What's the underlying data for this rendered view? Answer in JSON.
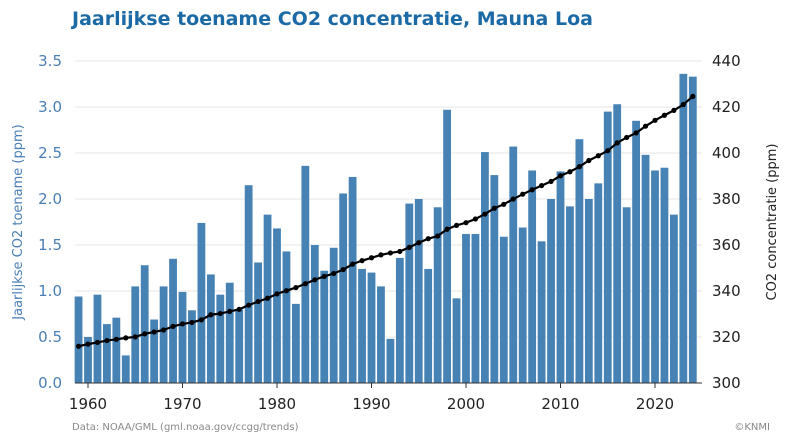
{
  "chart_data": {
    "type": "bar",
    "title": "Jaarlijkse toename CO2 concentratie, Mauna Loa",
    "xlabel": "",
    "ylabel": "Jaarlijkse CO2 toename (ppm)",
    "y2label": "CO2 concentratie (ppm)",
    "ylim": [
      0,
      3.5
    ],
    "y2lim": [
      300,
      440
    ],
    "yticks": [
      "0.0",
      "0.5",
      "1.0",
      "1.5",
      "2.0",
      "2.5",
      "3.0",
      "3.5"
    ],
    "y2ticks": [
      "300",
      "320",
      "340",
      "360",
      "380",
      "400",
      "420",
      "440"
    ],
    "xticks": [
      "1960",
      "1970",
      "1980",
      "1990",
      "2000",
      "2010",
      "2020"
    ],
    "grid": true,
    "x": [
      1959,
      1960,
      1961,
      1962,
      1963,
      1964,
      1965,
      1966,
      1967,
      1968,
      1969,
      1970,
      1971,
      1972,
      1973,
      1974,
      1975,
      1976,
      1977,
      1978,
      1979,
      1980,
      1981,
      1982,
      1983,
      1984,
      1985,
      1986,
      1987,
      1988,
      1989,
      1990,
      1991,
      1992,
      1993,
      1994,
      1995,
      1996,
      1997,
      1998,
      1999,
      2000,
      2001,
      2002,
      2003,
      2004,
      2005,
      2006,
      2007,
      2008,
      2009,
      2010,
      2011,
      2012,
      2013,
      2014,
      2015,
      2016,
      2017,
      2018,
      2019,
      2020,
      2021,
      2022,
      2023,
      2024
    ],
    "series": [
      {
        "name": "Jaarlijkse toename",
        "type": "bar",
        "axis": "left",
        "color": "#4682b4",
        "values": [
          0.94,
          0.5,
          0.96,
          0.64,
          0.71,
          0.3,
          1.05,
          1.28,
          0.69,
          1.05,
          1.35,
          0.99,
          0.79,
          1.74,
          1.18,
          0.96,
          1.09,
          0.8,
          2.15,
          1.31,
          1.83,
          1.68,
          1.43,
          0.86,
          2.36,
          1.5,
          1.22,
          1.47,
          2.06,
          2.24,
          1.24,
          1.2,
          1.05,
          0.48,
          1.36,
          1.95,
          2.0,
          1.24,
          1.91,
          2.97,
          0.92,
          1.62,
          1.62,
          2.51,
          2.26,
          1.59,
          2.57,
          1.69,
          2.31,
          1.54,
          2.0,
          2.3,
          1.92,
          2.65,
          2.0,
          2.17,
          2.95,
          3.03,
          1.91,
          2.85,
          2.48,
          2.31,
          2.34,
          1.83,
          3.36,
          3.33
        ]
      },
      {
        "name": "CO2 concentratie",
        "type": "line",
        "axis": "right",
        "color": "#000000",
        "values": [
          315.98,
          316.91,
          317.64,
          318.45,
          318.99,
          319.62,
          320.04,
          321.37,
          322.18,
          323.05,
          324.62,
          325.68,
          326.32,
          327.46,
          329.68,
          330.19,
          331.13,
          332.03,
          333.84,
          335.41,
          336.84,
          338.76,
          340.12,
          341.48,
          343.15,
          344.87,
          346.35,
          347.61,
          349.31,
          351.69,
          353.2,
          354.45,
          355.7,
          356.54,
          357.21,
          358.96,
          360.97,
          362.74,
          363.88,
          366.84,
          368.54,
          369.71,
          371.32,
          373.45,
          375.98,
          377.7,
          379.98,
          382.09,
          384.02,
          385.83,
          387.64,
          390.1,
          391.85,
          394.06,
          396.74,
          398.81,
          401.01,
          404.41,
          406.76,
          408.72,
          411.65,
          414.21,
          416.41,
          418.53,
          421.08,
          424.61
        ]
      }
    ]
  },
  "footer": {
    "source": "Data: NOAA/GML (gml.noaa.gov/ccgg/trends)",
    "credit": "©KNMI"
  }
}
